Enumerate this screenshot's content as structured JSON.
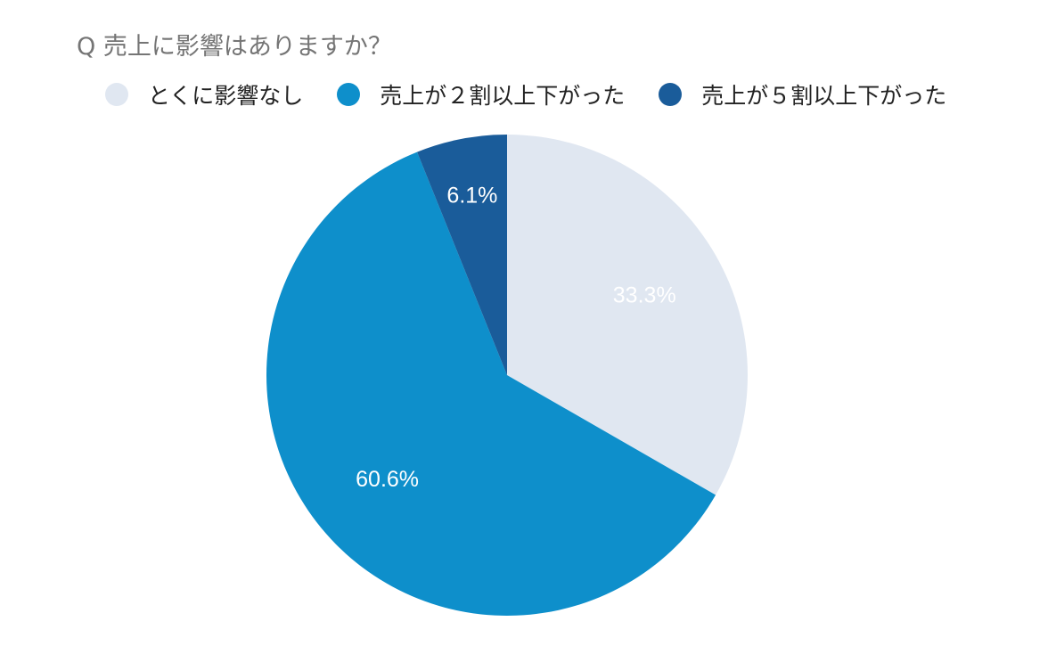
{
  "chart_data": {
    "type": "pie",
    "title": "Q 売上に影響はありますか？",
    "legend_position": "top",
    "slices": [
      {
        "label": "とくに影響なし",
        "value": 33.3,
        "value_label": "33.3%",
        "color": "#E0E7F1"
      },
      {
        "label": "売上が２割以上下がった",
        "value": 60.6,
        "value_label": "60.6%",
        "color": "#0E8FCB"
      },
      {
        "label": "売上が５割以上下がった",
        "value": 6.1,
        "value_label": "6.1%",
        "color": "#1A5C9A"
      }
    ]
  }
}
